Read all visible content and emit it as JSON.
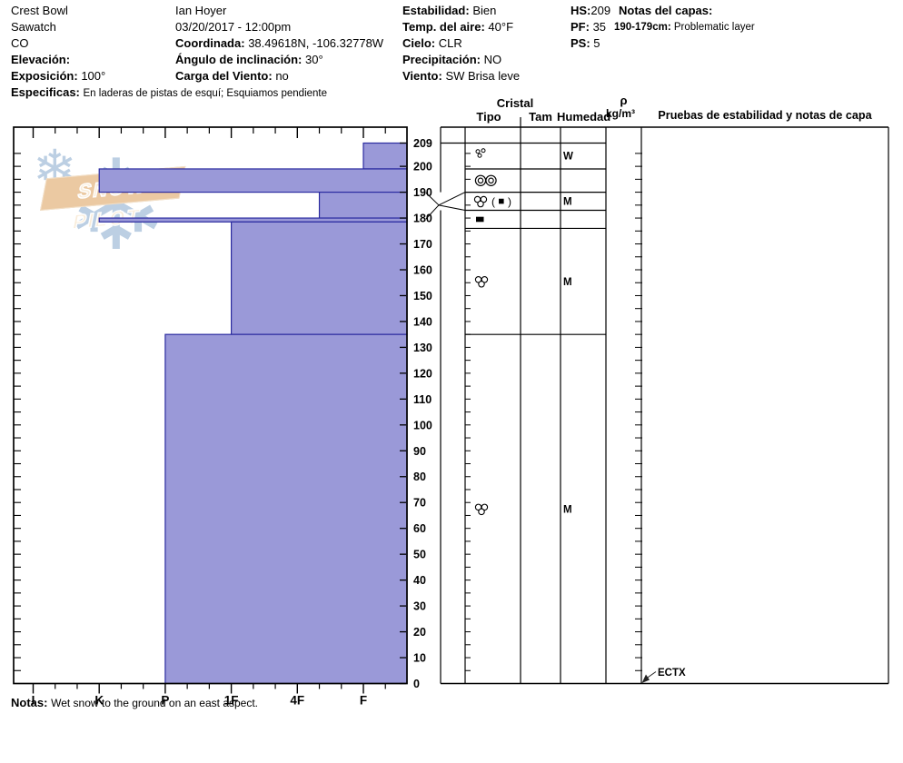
{
  "header": {
    "site": "Crest Bowl",
    "range": "Sawatch",
    "state": "CO",
    "elevation_label": "Elevación:",
    "elevation_value": "",
    "aspect_label": "Exposición:",
    "aspect_value": "100°",
    "specifics_label": "Especificas:",
    "specifics_value": "En laderas de pistas de esquí; Esquiamos pendiente",
    "observer": "Ian Hoyer",
    "datetime": "03/20/2017 - 12:00pm",
    "coords_label": "Coordinada:",
    "coords_value": "38.49618N, -106.32778W",
    "slope_label": "Ángulo de inclinación:",
    "slope_value": "30°",
    "windload_label": "Carga del Viento:",
    "windload_value": "no",
    "stability_label": "Estabilidad:",
    "stability_value": "Bien",
    "airtemp_label": "Temp. del aire:",
    "airtemp_value": "40°F",
    "sky_label": "Cielo:",
    "sky_value": "CLR",
    "precip_label": "Precipitación:",
    "precip_value": "NO",
    "wind_label": "Viento:",
    "wind_value": "SW Brisa leve",
    "hs_label": "HS:",
    "hs_value": "209",
    "pf_label": "PF:",
    "pf_value": "35",
    "ps_label": "PS:",
    "ps_value": "5",
    "layer_notes_label": "Notas del capas:",
    "layer_note_depth": "190-179cm:",
    "layer_note_text": "Problematic layer"
  },
  "logo": {
    "text": "SNOW PILOT",
    "banner_color": "#ebc9a2",
    "snowflake_color": "#bccfe3",
    "snowflake_glyph": "❄"
  },
  "table_headers": {
    "cristal": "Cristal",
    "tipo": "Tipo",
    "tam": "Tam",
    "humedad": "Humedad",
    "rho": "ρ",
    "rho_units": "kg/m³",
    "pruebas": "Pruebas de estabilidad y notas de capa"
  },
  "footer": {
    "notes_label": "Notas:",
    "notes_value": "Wet snow to the ground on an east aspect."
  },
  "chart_data": {
    "type": "bar",
    "subtype": "snow-profile-hardness",
    "hs_cm": 209,
    "hardness_categories": [
      "I",
      "K",
      "P",
      "1F",
      "4F",
      "F"
    ],
    "depth_ticks_cm": [
      209,
      200,
      190,
      180,
      170,
      160,
      150,
      140,
      130,
      120,
      110,
      100,
      90,
      80,
      70,
      60,
      50,
      40,
      30,
      20,
      10,
      0
    ],
    "layers": [
      {
        "top_cm": 209,
        "bottom_cm": 199,
        "hardness": "F",
        "grain_type": "melt forms (clustered small circles)",
        "symbol": "circles3small",
        "moisture": "W",
        "row_top_cm": 209,
        "row_bottom_cm": 199
      },
      {
        "top_cm": 199,
        "bottom_cm": 190,
        "hardness": "K",
        "grain_type": "melt-freeze polycrystals (double circles)",
        "symbol": "doublecircles",
        "moisture": "",
        "row_top_cm": 199,
        "row_bottom_cm": 190
      },
      {
        "top_cm": 190,
        "bottom_cm": 180,
        "hardness": "4F-F",
        "grain_type": "melt forms (ice inclusions)",
        "symbol": "cluster_paren_ice",
        "moisture": "M",
        "row_top_cm": 190,
        "row_bottom_cm": 183
      },
      {
        "top_cm": 180,
        "bottom_cm": 178.5,
        "hardness": "K",
        "grain_type": "ice layer",
        "symbol": "ice_rect",
        "moisture": "",
        "row_top_cm": 183,
        "row_bottom_cm": 176
      },
      {
        "top_cm": 178.5,
        "bottom_cm": 135,
        "hardness": "1F",
        "grain_type": "melt forms",
        "symbol": "cluster",
        "moisture": "M",
        "row_top_cm": 176,
        "row_bottom_cm": 135
      },
      {
        "top_cm": 135,
        "bottom_cm": 0,
        "hardness": "P",
        "grain_type": "melt forms",
        "symbol": "cluster",
        "moisture": "M",
        "row_top_cm": 135,
        "row_bottom_cm": 0
      }
    ],
    "stability_tests": [
      {
        "label": "ECTX",
        "depth_cm": 0
      }
    ],
    "bar_fill": "#9a99d8",
    "bar_stroke": "#2b2ba0",
    "axis_color": "#000000"
  }
}
